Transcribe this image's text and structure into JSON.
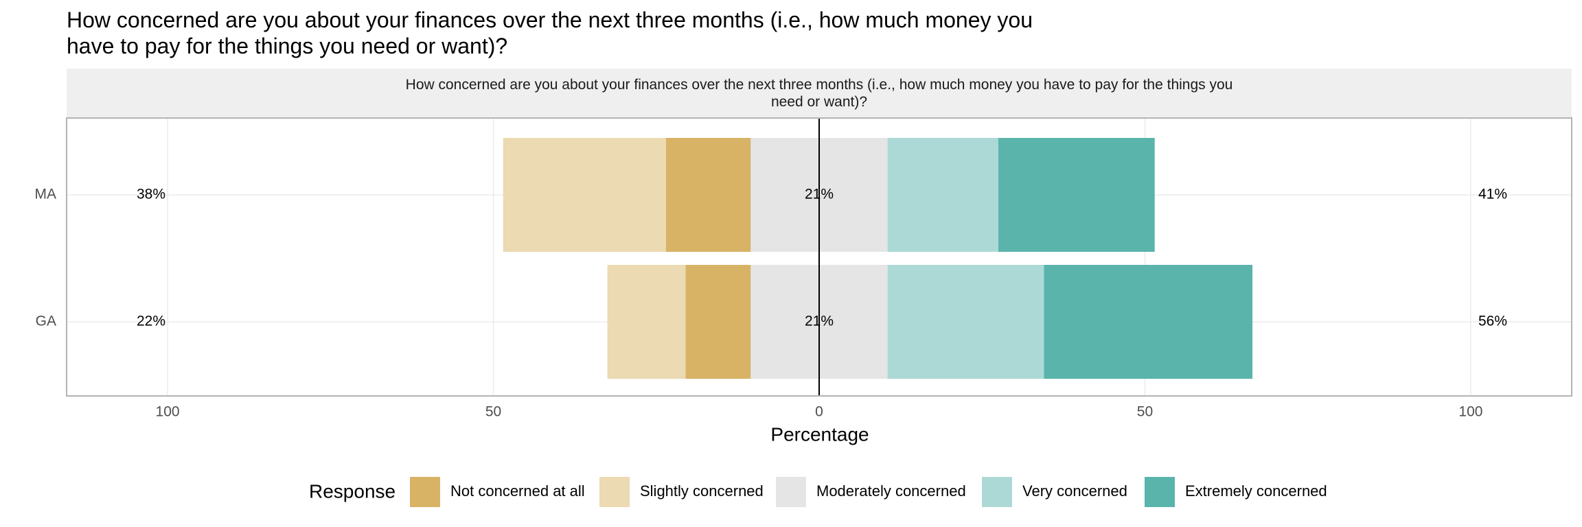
{
  "chart_data": {
    "type": "diverging_bar",
    "title": "How concerned are you about your finances over the next three months (i.e., how much money you have to pay for the things you need or want)?",
    "facet_label": "How concerned are you about your finances over the next three months (i.e., how much money you have to pay for the things you need or want)?",
    "categories": [
      "MA",
      "GA"
    ],
    "x_label": "Percentage",
    "legend_title": "Response",
    "series": [
      {
        "name": "Not concerned at all",
        "color": "#d8b365",
        "side": "low",
        "values": [
          13,
          10
        ]
      },
      {
        "name": "Slightly concerned",
        "color": "#ebdab2",
        "side": "low",
        "values": [
          25,
          12
        ]
      },
      {
        "name": "Moderately concerned",
        "color": "#e5e5e5",
        "side": "center",
        "values": [
          21,
          21
        ],
        "value_labels": [
          "21%",
          "21%"
        ]
      },
      {
        "name": "Very concerned",
        "color": "#acd9d6",
        "side": "high",
        "values": [
          17,
          24
        ]
      },
      {
        "name": "Extremely concerned",
        "color": "#5ab4ac",
        "side": "high",
        "values": [
          24,
          32
        ]
      }
    ],
    "low_totals": [
      38,
      22
    ],
    "low_total_labels": [
      "38%",
      "22%"
    ],
    "high_totals": [
      41,
      56
    ],
    "high_total_labels": [
      "41%",
      "56%"
    ],
    "xlim": [
      -115.5,
      115.5
    ],
    "xticks": [
      {
        "value": -100,
        "label": "100"
      },
      {
        "value": -50,
        "label": "50"
      },
      0,
      50,
      100
    ]
  }
}
